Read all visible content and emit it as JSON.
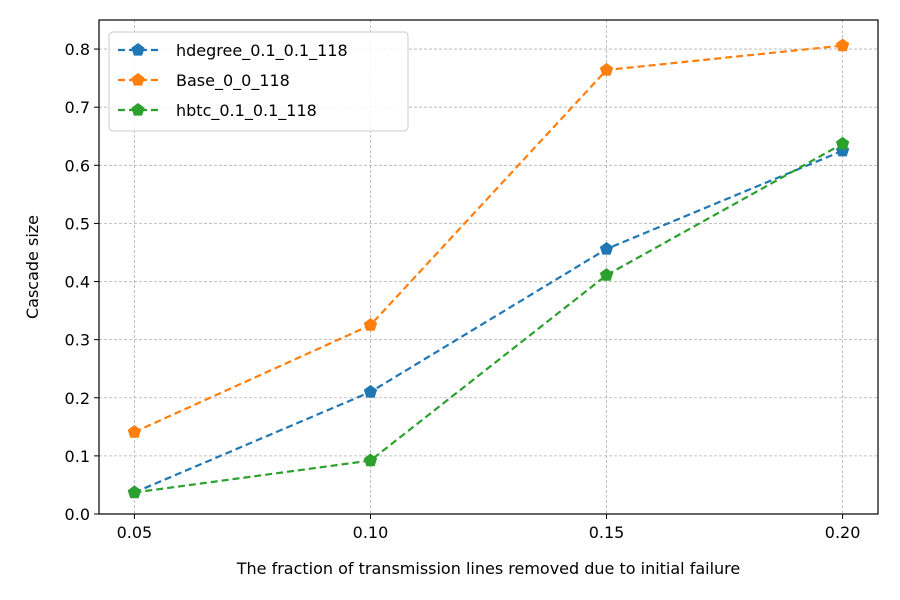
{
  "chart_data": {
    "type": "line",
    "title": "",
    "xlabel": "The fraction of transmission lines removed due to initial failure",
    "ylabel": "Cascade size",
    "x": [
      0.05,
      0.1,
      0.15,
      0.2
    ],
    "x_tick_labels": [
      "0.05",
      "0.10",
      "0.15",
      "0.20"
    ],
    "y_ticks": [
      0.0,
      0.1,
      0.2,
      0.3,
      0.4,
      0.5,
      0.6,
      0.7,
      0.8
    ],
    "y_tick_labels": [
      "0.0",
      "0.1",
      "0.2",
      "0.3",
      "0.4",
      "0.5",
      "0.6",
      "0.7",
      "0.8"
    ],
    "xlim": [
      0.0425,
      0.2075
    ],
    "ylim": [
      0.0,
      0.85
    ],
    "grid": true,
    "legend_position": "upper-left",
    "marker": "pentagon",
    "line_style": "dashed",
    "series": [
      {
        "name": "hdegree_0.1_0.1_118",
        "color": "#1f77b4",
        "values": [
          0.037,
          0.21,
          0.456,
          0.625
        ]
      },
      {
        "name": "Base_0_0_118",
        "color": "#ff7f0e",
        "values": [
          0.141,
          0.325,
          0.764,
          0.806
        ]
      },
      {
        "name": "hbtc_0.1_0.1_118",
        "color": "#2ca02c",
        "values": [
          0.037,
          0.092,
          0.411,
          0.637
        ]
      }
    ]
  }
}
